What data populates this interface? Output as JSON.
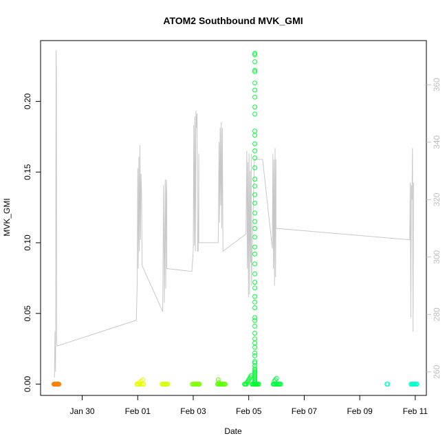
{
  "chart_data": {
    "type": "scatter",
    "title": "ATOM2 Southbound MVK_GMI",
    "xlabel": "Date",
    "ylabel": "MVK_GMI",
    "x_ticks": [
      {
        "day": 2,
        "label": "Jan 30"
      },
      {
        "day": 4,
        "label": "Feb 01"
      },
      {
        "day": 6,
        "label": "Feb 03"
      },
      {
        "day": 8,
        "label": "Feb 05"
      },
      {
        "day": 10,
        "label": "Feb 07"
      },
      {
        "day": 12,
        "label": "Feb 09"
      },
      {
        "day": 14,
        "label": "Feb 11"
      }
    ],
    "xlim": [
      0.5,
      14.4
    ],
    "ylim": [
      -0.008,
      0.243
    ],
    "y_ticks": [
      "0.00",
      "0.05",
      "0.10",
      "0.15",
      "0.20"
    ],
    "y_tick_values": [
      0,
      0.05,
      0.1,
      0.15,
      0.2
    ],
    "right_axis": {
      "ylim": [
        251.8,
        375.4
      ],
      "ticks": [
        "260",
        "280",
        "300",
        "320",
        "340",
        "360"
      ],
      "tick_values": [
        260,
        280,
        300,
        320,
        340,
        360
      ],
      "color": "#c0c0c0"
    },
    "line_series": {
      "color": "#c8c8c8",
      "axis": "right",
      "points": [
        [
          1.0,
          258
        ],
        [
          1.02,
          274
        ],
        [
          1.04,
          260
        ],
        [
          1.06,
          372
        ],
        [
          1.07,
          365
        ],
        [
          1.08,
          272
        ],
        [
          1.09,
          269
        ],
        [
          3.95,
          278
        ],
        [
          3.98,
          290
        ],
        [
          4.0,
          331
        ],
        [
          4.02,
          296
        ],
        [
          4.04,
          335
        ],
        [
          4.06,
          302
        ],
        [
          4.08,
          339
        ],
        [
          4.1,
          306
        ],
        [
          4.12,
          329
        ],
        [
          4.14,
          322
        ],
        [
          4.16,
          297
        ],
        [
          4.9,
          281
        ],
        [
          4.93,
          325
        ],
        [
          4.96,
          284
        ],
        [
          4.99,
          327
        ],
        [
          5.01,
          289
        ],
        [
          5.03,
          327
        ],
        [
          5.05,
          322
        ],
        [
          5.05,
          296
        ],
        [
          5.95,
          295
        ],
        [
          6.0,
          302
        ],
        [
          6.02,
          346
        ],
        [
          6.04,
          304
        ],
        [
          6.06,
          349
        ],
        [
          6.08,
          302
        ],
        [
          6.1,
          351
        ],
        [
          6.12,
          345
        ],
        [
          6.14,
          350
        ],
        [
          6.16,
          302
        ],
        [
          6.18,
          302
        ],
        [
          6.2,
          336
        ],
        [
          6.2,
          305
        ],
        [
          6.9,
          305
        ],
        [
          6.93,
          340
        ],
        [
          6.95,
          312
        ],
        [
          6.97,
          345
        ],
        [
          6.99,
          318
        ],
        [
          7.01,
          347
        ],
        [
          7.03,
          310
        ],
        [
          7.05,
          345
        ],
        [
          7.07,
          302
        ],
        [
          7.07,
          302
        ],
        [
          7.9,
          308
        ],
        [
          7.93,
          337
        ],
        [
          7.95,
          296
        ],
        [
          7.97,
          333
        ],
        [
          7.99,
          286
        ],
        [
          8.01,
          336
        ],
        [
          8.03,
          287
        ],
        [
          8.05,
          330
        ],
        [
          8.07,
          298
        ],
        [
          8.09,
          336
        ],
        [
          8.1,
          290
        ],
        [
          8.1,
          290
        ],
        [
          8.2,
          334
        ],
        [
          8.3,
          334
        ],
        [
          8.5,
          334
        ],
        [
          8.5,
          334
        ],
        [
          8.85,
          303
        ],
        [
          8.87,
          336
        ],
        [
          8.89,
          296
        ],
        [
          8.91,
          334
        ],
        [
          8.93,
          290
        ],
        [
          8.95,
          338
        ],
        [
          8.97,
          293
        ],
        [
          8.98,
          334
        ],
        [
          8.98,
          310
        ],
        [
          13.8,
          306
        ],
        [
          13.82,
          326
        ],
        [
          13.84,
          279
        ],
        [
          13.86,
          325
        ],
        [
          13.88,
          320
        ],
        [
          13.9,
          338
        ],
        [
          13.92,
          274
        ],
        [
          13.94,
          326
        ]
      ]
    },
    "scatter_series": [
      {
        "color": "#ff8000",
        "axis": "left",
        "x": [
          0.98,
          1.0,
          1.02,
          1.04,
          1.06,
          1.08,
          1.1,
          1.12,
          1.14,
          1.16
        ],
        "y": [
          0,
          0,
          0,
          0,
          0,
          0,
          0,
          0,
          0,
          0
        ]
      },
      {
        "color": "#e6ff00",
        "axis": "left",
        "x": [
          3.97,
          4.0,
          4.03,
          4.06,
          4.09,
          4.12,
          4.15,
          4.18,
          4.2,
          4.21
        ],
        "y": [
          0,
          0,
          0,
          0.001,
          0,
          0.002,
          0,
          0.003,
          0,
          0
        ]
      },
      {
        "color": "#d4ff00",
        "axis": "left",
        "x": [
          4.88,
          4.91,
          4.94,
          4.97,
          5.0,
          5.03,
          5.06,
          5.08
        ],
        "y": [
          0,
          0,
          0,
          0,
          0,
          0,
          0,
          0
        ]
      },
      {
        "color": "#80ff00",
        "axis": "left",
        "x": [
          5.97,
          6.0,
          6.03,
          6.06,
          6.09,
          6.12,
          6.15,
          6.18,
          6.2,
          6.22
        ],
        "y": [
          0,
          0,
          0,
          0,
          0,
          0,
          0,
          0,
          0,
          0
        ]
      },
      {
        "color": "#60ff00",
        "axis": "left",
        "x": [
          6.88,
          6.91,
          6.94,
          6.97,
          7.0,
          7.03,
          7.06,
          7.09,
          7.12,
          7.15,
          6.9,
          6.93
        ],
        "y": [
          0,
          0,
          0,
          0,
          0,
          0,
          0,
          0,
          0,
          0,
          0.003,
          0.001
        ]
      },
      {
        "color": "#00ff2a",
        "axis": "left",
        "x": [
          7.85,
          7.88,
          7.91,
          7.94,
          7.97,
          8.0,
          8.03,
          8.06,
          8.09,
          8.12,
          8.15,
          8.18,
          8.21,
          8.24,
          8.27,
          8.3,
          8.33,
          8.36
        ],
        "y": [
          0,
          0,
          0,
          0.001,
          0.002,
          0.003,
          0.004,
          0.005,
          0.006,
          0,
          0,
          0,
          0,
          0,
          0,
          0,
          0,
          0
        ]
      },
      {
        "color": "#00ff33",
        "axis": "left",
        "x": [
          8.22,
          8.22,
          8.22,
          8.22,
          8.22,
          8.22,
          8.22,
          8.22,
          8.22,
          8.22,
          8.22,
          8.22,
          8.22,
          8.22,
          8.22,
          8.22,
          8.22,
          8.22,
          8.22,
          8.22,
          8.22,
          8.22,
          8.22,
          8.22,
          8.22,
          8.22,
          8.22,
          8.22,
          8.22,
          8.22,
          8.22,
          8.22,
          8.22,
          8.22,
          8.22,
          8.22,
          8.22,
          8.22,
          8.22,
          8.22,
          8.22,
          8.22,
          8.22,
          8.22,
          8.22,
          8.22,
          8.22,
          8.22,
          8.22,
          8.22,
          8.22,
          8.22,
          8.22,
          8.22,
          8.22,
          8.22,
          8.22,
          8.22,
          8.22,
          8.22,
          8.22,
          8.22,
          8.22
        ],
        "y": [
          0.234,
          0.233,
          0.228,
          0.222,
          0.221,
          0.213,
          0.208,
          0.203,
          0.196,
          0.191,
          0.179,
          0.176,
          0.17,
          0.165,
          0.16,
          0.153,
          0.145,
          0.14,
          0.134,
          0.128,
          0.121,
          0.115,
          0.11,
          0.104,
          0.097,
          0.092,
          0.085,
          0.078,
          0.072,
          0.068,
          0.062,
          0.058,
          0.054,
          0.047,
          0.045,
          0.041,
          0.036,
          0.032,
          0.029,
          0.026,
          0.022,
          0.02,
          0.016,
          0.015,
          0.013,
          0.011,
          0.01,
          0.009,
          0.008,
          0.007,
          0.006,
          0.005,
          0.004,
          0.003,
          0.002,
          0.001,
          0.001,
          0.0,
          0.0,
          0.0,
          0.0,
          0.0,
          0.0
        ]
      },
      {
        "color": "#00ff40",
        "axis": "left",
        "x": [
          8.88,
          8.91,
          8.94,
          8.97,
          9.0,
          9.03,
          9.06,
          9.09,
          9.12,
          9.15,
          8.92,
          8.96,
          9.0
        ],
        "y": [
          0,
          0,
          0,
          0,
          0,
          0,
          0,
          0,
          0,
          0,
          0.002,
          0.003,
          0.004
        ]
      },
      {
        "color": "#00ffd0",
        "axis": "left",
        "x": [
          12.98,
          13.01
        ],
        "y": [
          0,
          0
        ]
      },
      {
        "color": "#00ffcc",
        "axis": "left",
        "x": [
          13.85,
          13.88,
          13.91,
          13.94,
          13.97,
          14.0,
          14.03,
          14.06
        ],
        "y": [
          0,
          0,
          0,
          0,
          0,
          0,
          0,
          0
        ]
      }
    ]
  }
}
